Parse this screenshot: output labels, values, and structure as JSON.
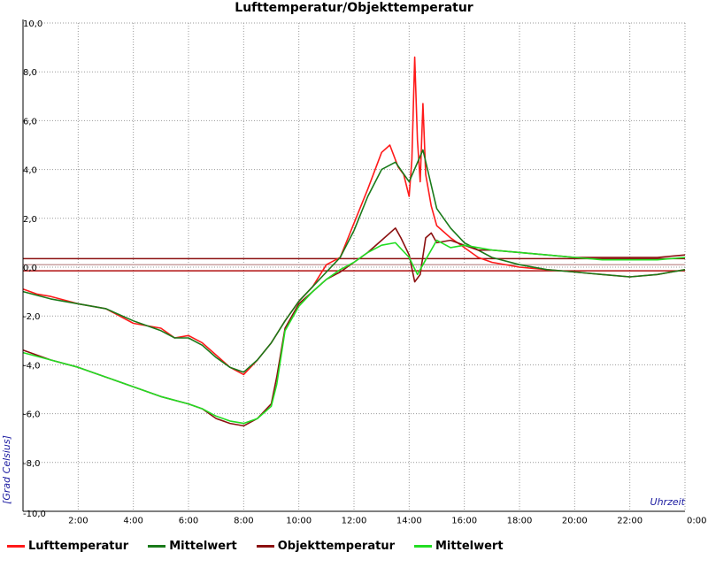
{
  "chart_data": {
    "type": "line",
    "title": "Lufttemperatur/Objekttemperatur",
    "xlabel": "Uhrzeit",
    "ylabel": "[Grad Celsius]",
    "xlim": [
      0,
      24
    ],
    "ylim": [
      -10,
      10
    ],
    "x_ticks": [
      {
        "x": 2,
        "label": "2:00"
      },
      {
        "x": 4,
        "label": "4:00"
      },
      {
        "x": 6,
        "label": "6:00"
      },
      {
        "x": 8,
        "label": "8:00"
      },
      {
        "x": 10,
        "label": "10:00"
      },
      {
        "x": 12,
        "label": "12:00"
      },
      {
        "x": 14,
        "label": "14:00"
      },
      {
        "x": 16,
        "label": "16:00"
      },
      {
        "x": 18,
        "label": "18:00"
      },
      {
        "x": 20,
        "label": "20:00"
      },
      {
        "x": 22,
        "label": "22:00"
      },
      {
        "x": 24,
        "label": "0:00"
      }
    ],
    "y_ticks": [
      {
        "y": 10,
        "label": "10,0"
      },
      {
        "y": 8,
        "label": "8,0"
      },
      {
        "y": 6,
        "label": "6,0"
      },
      {
        "y": 4,
        "label": "4,0"
      },
      {
        "y": 2,
        "label": "2,0"
      },
      {
        "y": 0,
        "label": "0,0"
      },
      {
        "y": -2,
        "label": "-2,0"
      },
      {
        "y": -4,
        "label": "-4,0"
      },
      {
        "y": -6,
        "label": "-6,0"
      },
      {
        "y": -8,
        "label": "-8,0"
      },
      {
        "y": -10,
        "label": "-10,0"
      }
    ],
    "grid": true,
    "legend_position": "bottom",
    "reference_lines": [
      {
        "y": 0.35,
        "color": "#8b1010"
      },
      {
        "y": 0.1,
        "color": "#c8a0a0"
      },
      {
        "y": -0.15,
        "color": "#b01010"
      }
    ],
    "series": [
      {
        "name": "Lufttemperatur",
        "color": "#ff1a1a",
        "x": [
          0,
          0.5,
          1,
          2,
          3,
          4,
          5,
          5.5,
          6,
          6.5,
          7,
          7.5,
          8,
          8.5,
          9,
          9.5,
          10,
          10.5,
          11,
          11.5,
          12,
          12.5,
          13,
          13.3,
          13.6,
          13.8,
          14,
          14.1,
          14.2,
          14.3,
          14.4,
          14.5,
          14.6,
          14.8,
          15,
          15.5,
          16,
          16.5,
          17,
          18,
          19,
          20,
          21,
          22,
          23,
          24
        ],
        "y": [
          -0.9,
          -1.1,
          -1.2,
          -1.5,
          -1.7,
          -2.3,
          -2.5,
          -2.9,
          -2.8,
          -3.1,
          -3.6,
          -4.1,
          -4.4,
          -3.8,
          -3.1,
          -2.2,
          -1.4,
          -0.8,
          0.1,
          0.4,
          1.8,
          3.2,
          4.7,
          5.0,
          4.1,
          3.8,
          2.9,
          4.4,
          8.6,
          5.2,
          3.5,
          6.7,
          3.8,
          2.5,
          1.7,
          1.2,
          0.8,
          0.4,
          0.2,
          0.0,
          -0.1,
          -0.2,
          -0.3,
          -0.4,
          -0.3,
          -0.1
        ]
      },
      {
        "name": "Mittelwert",
        "color": "#1a7a1a",
        "x": [
          0,
          1,
          2,
          3,
          4,
          5,
          5.5,
          6,
          6.5,
          7,
          7.5,
          8,
          8.5,
          9,
          9.5,
          10,
          10.5,
          11,
          11.5,
          12,
          12.5,
          13,
          13.5,
          14,
          14.5,
          15,
          15.5,
          16,
          17,
          18,
          19,
          20,
          21,
          22,
          23,
          24
        ],
        "y": [
          -1.0,
          -1.3,
          -1.5,
          -1.7,
          -2.2,
          -2.6,
          -2.9,
          -2.9,
          -3.2,
          -3.7,
          -4.1,
          -4.3,
          -3.8,
          -3.1,
          -2.2,
          -1.4,
          -0.8,
          -0.2,
          0.4,
          1.5,
          2.9,
          4.0,
          4.3,
          3.5,
          4.8,
          2.4,
          1.6,
          1.0,
          0.4,
          0.1,
          -0.1,
          -0.2,
          -0.3,
          -0.4,
          -0.3,
          -0.1
        ]
      },
      {
        "name": "Objekttemperatur",
        "color": "#8b1010",
        "x": [
          0,
          0.5,
          1,
          2,
          3,
          4,
          5,
          6,
          6.5,
          7,
          7.5,
          8,
          8.5,
          9,
          9.2,
          9.5,
          10,
          10.5,
          11,
          11.5,
          12,
          12.5,
          13,
          13.5,
          13.7,
          14,
          14.2,
          14.4,
          14.6,
          14.8,
          15,
          15.5,
          16,
          16.5,
          17,
          18,
          19,
          20,
          21,
          22,
          23,
          24
        ],
        "y": [
          -3.4,
          -3.6,
          -3.8,
          -4.1,
          -4.5,
          -4.9,
          -5.3,
          -5.6,
          -5.8,
          -6.2,
          -6.4,
          -6.5,
          -6.2,
          -5.6,
          -4.5,
          -2.5,
          -1.5,
          -1.0,
          -0.5,
          -0.2,
          0.2,
          0.6,
          1.1,
          1.6,
          1.2,
          0.5,
          -0.6,
          -0.3,
          1.2,
          1.4,
          1.0,
          1.1,
          0.9,
          0.7,
          0.7,
          0.6,
          0.5,
          0.4,
          0.4,
          0.4,
          0.4,
          0.5
        ]
      },
      {
        "name": "Mittelwert",
        "color": "#22dd22",
        "x": [
          0,
          1,
          2,
          3,
          4,
          5,
          6,
          6.5,
          7,
          7.5,
          8,
          8.5,
          9,
          9.2,
          9.5,
          10,
          10.5,
          11,
          11.5,
          12,
          12.5,
          13,
          13.5,
          14,
          14.3,
          14.6,
          15,
          15.5,
          16,
          17,
          18,
          19,
          20,
          21,
          22,
          23,
          24
        ],
        "y": [
          -3.5,
          -3.8,
          -4.1,
          -4.5,
          -4.9,
          -5.3,
          -5.6,
          -5.8,
          -6.1,
          -6.3,
          -6.4,
          -6.2,
          -5.7,
          -4.8,
          -2.6,
          -1.6,
          -1.0,
          -0.5,
          -0.1,
          0.2,
          0.6,
          0.9,
          1.0,
          0.4,
          -0.3,
          0.3,
          1.1,
          0.8,
          0.9,
          0.7,
          0.6,
          0.5,
          0.4,
          0.3,
          0.3,
          0.3,
          0.4
        ]
      }
    ]
  },
  "legend": [
    {
      "label": "Lufttemperatur",
      "color": "#ff1a1a"
    },
    {
      "label": "Mittelwert",
      "color": "#1a7a1a"
    },
    {
      "label": "Objekttemperatur",
      "color": "#8b1010"
    },
    {
      "label": "Mittelwert",
      "color": "#22dd22"
    }
  ]
}
